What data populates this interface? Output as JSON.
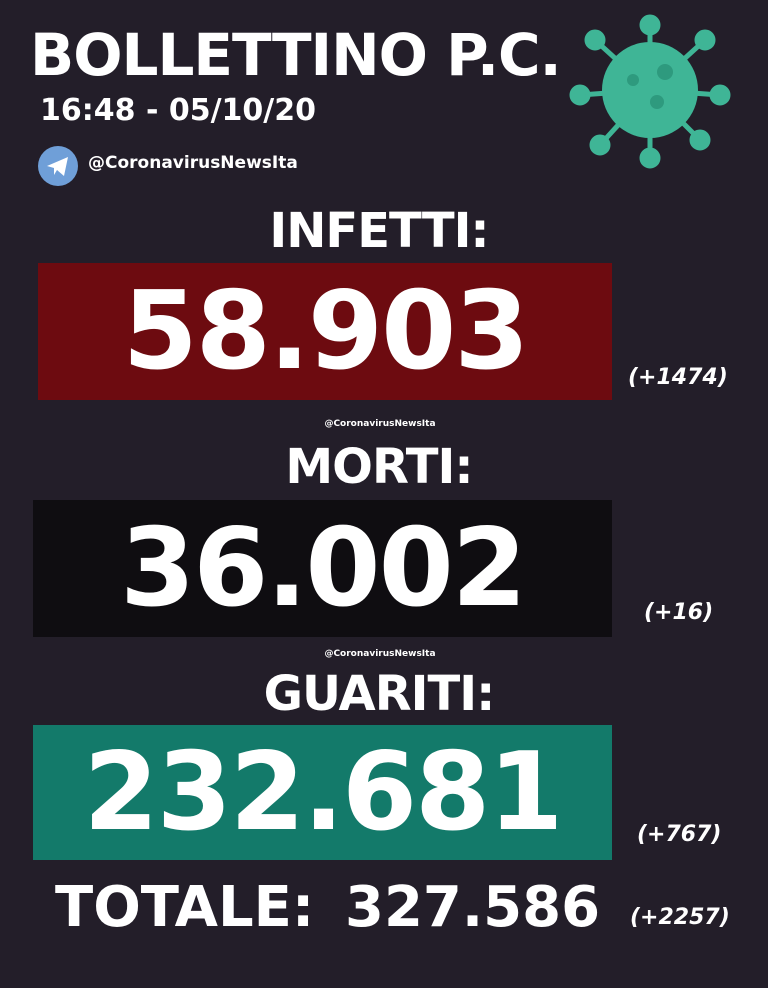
{
  "header": {
    "title": "BOLLETTINO P.C.",
    "datetime": "16:48 - 05/10/20",
    "handle": "@CoronavirusNewsIta",
    "telegram_icon": "telegram-icon",
    "virus_icon": "virus-icon"
  },
  "watermark": "@CoronavirusNewsIta",
  "stats": [
    {
      "label": "INFETTI:",
      "value": "58.903",
      "delta": "(+1474)",
      "color": "#6d0b10"
    },
    {
      "label": "MORTI:",
      "value": "36.002",
      "delta": "(+16)",
      "color": "#0f0d11"
    },
    {
      "label": "GUARITI:",
      "value": "232.681",
      "delta": "(+767)",
      "color": "#137a6a"
    }
  ],
  "total": {
    "label": "TOTALE:",
    "value": "327.586",
    "delta": "(+2257)"
  },
  "colors": {
    "background": "#231e29",
    "virus": "#3fb596"
  }
}
